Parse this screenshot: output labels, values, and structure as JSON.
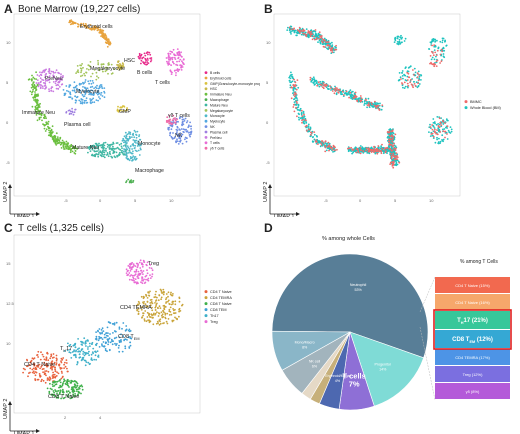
{
  "panels": {
    "A": {
      "letter": "A",
      "title": "Bone Marrow (19,227 cells)"
    },
    "B": {
      "letter": "B"
    },
    "C": {
      "letter": "C",
      "title": "T cells (1,325 cells)"
    },
    "D": {
      "letter": "D"
    }
  },
  "axes": {
    "umap1": "UMAP 1",
    "umap2": "UMAP 2"
  },
  "colors": {
    "erythroid": "#e8a33d",
    "hsc": "#c8b84a",
    "bcells": "#e7298a",
    "gmp": "#d9c23f",
    "immature_neu": "#6bbf3f",
    "macrophage": "#4caf50",
    "mature_neu": "#3fb7a3",
    "megakaryocyte": "#a3c45a",
    "monocyte": "#4fb8c9",
    "myelocyte": "#53a8e0",
    "nk": "#6f8fe3",
    "plasma": "#9f7fe0",
    "preneu": "#c97ae0",
    "tcells": "#e86bd4",
    "gdt": "#f06aa8",
    "bmmc": "#ef6a6a",
    "wholeblood": "#1fc3bf",
    "cd4naive": "#e8623d",
    "cd4temra": "#c9a43a",
    "cd8naive": "#3fb04a",
    "cd8tem": "#3fa0d6",
    "th17": "#3fb0c9",
    "treg": "#e86bd4"
  },
  "chart_data": [
    {
      "type": "scatter",
      "title": "Bone Marrow (19,227 cells)",
      "xlabel": "UMAP 1",
      "ylabel": "UMAP 2",
      "clusters": [
        {
          "name": "Erythroid cells",
          "label": "Erythroid cells",
          "color_key": "erythroid"
        },
        {
          "name": "HSC",
          "label": "HSC",
          "color_key": "hsc"
        },
        {
          "name": "B cells",
          "label": "B cells",
          "color_key": "bcells"
        },
        {
          "name": "Megakaryocyte",
          "label": "Megakaryocyte",
          "color_key": "megakaryocyte"
        },
        {
          "name": "T cells",
          "label": "T cells",
          "color_key": "tcells"
        },
        {
          "name": "PreNeu",
          "label": "PreNeu",
          "color_key": "preneu"
        },
        {
          "name": "Myelocyte",
          "label": "Myelocyte",
          "color_key": "myelocyte"
        },
        {
          "name": "GMP",
          "label": "GMP",
          "color_key": "gmp"
        },
        {
          "name": "Immature Neu",
          "label": "Immature Neu",
          "color_key": "immature_neu"
        },
        {
          "name": "Plasma cell",
          "label": "Plasma cell",
          "color_key": "plasma"
        },
        {
          "name": "γδ T cells",
          "label": "γδ T cells",
          "color_key": "gdt"
        },
        {
          "name": "NK",
          "label": "NK",
          "color_key": "nk"
        },
        {
          "name": "Mature Neu",
          "label": "Mature Neu",
          "color_key": "mature_neu"
        },
        {
          "name": "Monocyte",
          "label": "Monocyte",
          "color_key": "monocyte"
        },
        {
          "name": "Macrophage",
          "label": "Macrophage",
          "color_key": "macrophage"
        }
      ],
      "legend": [
        {
          "name": "B cells",
          "color_key": "bcells"
        },
        {
          "name": "Erythroid cells",
          "color_key": "erythroid"
        },
        {
          "name": "GMP(Granulocyte-monocyte progenitors)",
          "color_key": "gmp"
        },
        {
          "name": "HSC",
          "color_key": "hsc"
        },
        {
          "name": "Immature Neu",
          "color_key": "immature_neu"
        },
        {
          "name": "Macrophage",
          "color_key": "macrophage"
        },
        {
          "name": "Mature Neu",
          "color_key": "mature_neu"
        },
        {
          "name": "Megakaryocyte",
          "color_key": "megakaryocyte"
        },
        {
          "name": "Monocyte",
          "color_key": "monocyte"
        },
        {
          "name": "Myelocyte",
          "color_key": "myelocyte"
        },
        {
          "name": "NK",
          "color_key": "nk"
        },
        {
          "name": "Plasma cell",
          "color_key": "plasma"
        },
        {
          "name": "PreNeu",
          "color_key": "preneu"
        },
        {
          "name": "T cells",
          "color_key": "tcells"
        },
        {
          "name": "γδ T cells",
          "color_key": "gdt"
        }
      ],
      "x_ticks": [
        "-5",
        "0",
        "5",
        "10"
      ],
      "y_ticks": [
        "10",
        "5",
        "0",
        "-5"
      ],
      "legend_position": "right"
    },
    {
      "type": "scatter",
      "xlabel": "UMAP 1",
      "ylabel": "UMAP 2",
      "legend": [
        {
          "name": "BMMC",
          "color_key": "bmmc"
        },
        {
          "name": "Whole Blood (BM)",
          "color_key": "wholeblood"
        }
      ],
      "x_ticks": [
        "-5",
        "0",
        "5",
        "10"
      ],
      "y_ticks": [
        "10",
        "5",
        "0",
        "-5"
      ],
      "legend_position": "right"
    },
    {
      "type": "scatter",
      "title": "T cells (1,325 cells)",
      "xlabel": "UMAP 1",
      "ylabel": "UMAP 2",
      "clusters": [
        {
          "name": "Treg",
          "label": "Treg",
          "color_key": "treg"
        },
        {
          "name": "CD4 TEMRA",
          "label": "CD4 TEMRA",
          "color_key": "cd4temra"
        },
        {
          "name": "CD8 TEM",
          "label": "CD8 T",
          "sub": "EM",
          "color_key": "cd8tem"
        },
        {
          "name": "Th17",
          "label": "T",
          "sub": "H",
          "label2": "17",
          "color_key": "th17"
        },
        {
          "name": "CD4 T Naive",
          "label": "CD4 T Naive",
          "color_key": "cd4naive"
        },
        {
          "name": "CD8 T Naive",
          "label": "CD8 T Naive",
          "color_key": "cd8naive"
        }
      ],
      "legend": [
        {
          "name": "CD4 T Naive",
          "color_key": "cd4naive"
        },
        {
          "name": "CD4 TEMRA",
          "color_key": "cd4temra"
        },
        {
          "name": "CD8 T Naive",
          "color_key": "cd8naive"
        },
        {
          "name": "CD8 TEM",
          "color_key": "cd8tem"
        },
        {
          "name": "Th17",
          "color_key": "th17"
        },
        {
          "name": "Treg",
          "color_key": "treg"
        }
      ],
      "x_ticks": [
        "2",
        "4"
      ],
      "y_ticks": [
        "15",
        "12.5",
        "10"
      ],
      "legend_position": "right"
    },
    {
      "type": "pie",
      "title": "% among whole Cells",
      "slices": [
        {
          "name": "Neutrophil",
          "label": "Neutrophil\n53%",
          "value": 53,
          "color": "#587e97"
        },
        {
          "name": "Progenitor",
          "label": "Progenitor\n14%",
          "value": 14,
          "color": "#7fdbd6"
        },
        {
          "name": "T cells",
          "label": "T cells\n7%",
          "value": 7,
          "color": "#8e6fd6"
        },
        {
          "name": "Erythroid/Mega",
          "label": "Erythroid/Mega\n4%",
          "value": 4,
          "color": "#4d68b0"
        },
        {
          "name": "Other1",
          "label": "",
          "value": 2,
          "color": "#c7b07a"
        },
        {
          "name": "Other2",
          "label": "",
          "value": 2,
          "color": "#e5d9c6"
        },
        {
          "name": "NK cell",
          "label": "NK cell\n6%",
          "value": 6,
          "color": "#a2b4bd"
        },
        {
          "name": "Mono/Macro",
          "label": "Mono/Macro\n8%",
          "value": 8,
          "color": "#8ab6c8"
        }
      ],
      "subtitle": "% among T Cells",
      "bars": [
        {
          "name": "CD4 T Naive",
          "label": "CD4 T Naive (15%)",
          "value": 15,
          "color": "#f2694f"
        },
        {
          "name": "CD4 T Naive 2",
          "label": "CD4 T Naive (16%)",
          "value": 16,
          "color": "#f6a76b"
        },
        {
          "name": "Th17",
          "label": "T",
          "sub": "H",
          "label2": "17 (21%)",
          "value": 21,
          "color": "#37c79a"
        },
        {
          "name": "CD8 TEM",
          "label": "CD8 T",
          "sub": "EM",
          "label2": " (12%)",
          "value": 12,
          "color": "#35a8d4"
        },
        {
          "name": "CD4 TEMRA",
          "label": "CD4 TEMRA (17%)",
          "value": 17,
          "color": "#4d94e6"
        },
        {
          "name": "Treg",
          "label": "Treg (12%)",
          "value": 12,
          "color": "#7b6fe0"
        },
        {
          "name": "γδ",
          "label": "γδ (8%)",
          "value": 8,
          "color": "#b45ad9"
        }
      ]
    }
  ]
}
